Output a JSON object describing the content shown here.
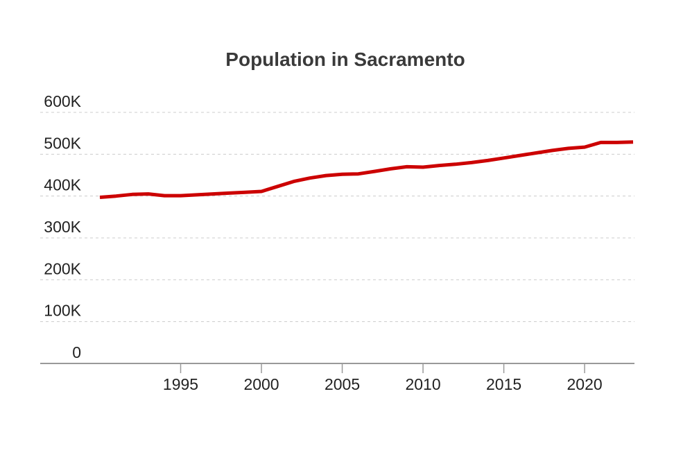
{
  "chart_data": {
    "type": "line",
    "title": "Population in Sacramento",
    "xlabel": "",
    "ylabel": "",
    "xlim": [
      1990,
      2023
    ],
    "ylim": [
      0,
      600000
    ],
    "x_ticks": [
      1995,
      2000,
      2005,
      2010,
      2015,
      2020
    ],
    "y_ticks": [
      0,
      100000,
      200000,
      300000,
      400000,
      500000,
      600000
    ],
    "y_tick_labels": [
      "0",
      "100K",
      "200K",
      "300K",
      "400K",
      "500K",
      "600K"
    ],
    "grid": true,
    "legend": "none",
    "line_color": "#cc0000",
    "series": [
      {
        "x": [
          1990,
          1991,
          1992,
          1993,
          1994,
          1995,
          1996,
          1997,
          1998,
          1999,
          2000,
          2001,
          2002,
          2003,
          2004,
          2005,
          2006,
          2007,
          2008,
          2009,
          2010,
          2011,
          2012,
          2013,
          2014,
          2015,
          2016,
          2017,
          2018,
          2019,
          2020,
          2021,
          2022,
          2023
        ],
        "values": [
          397000,
          400000,
          404000,
          405000,
          401000,
          401000,
          403000,
          405000,
          407000,
          409000,
          411000,
          423000,
          435000,
          443000,
          449000,
          452000,
          453000,
          459000,
          465000,
          470000,
          469000,
          473000,
          476000,
          480000,
          485000,
          491000,
          497000,
          503000,
          509000,
          514000,
          517000,
          528000,
          528000,
          529000
        ]
      }
    ]
  }
}
